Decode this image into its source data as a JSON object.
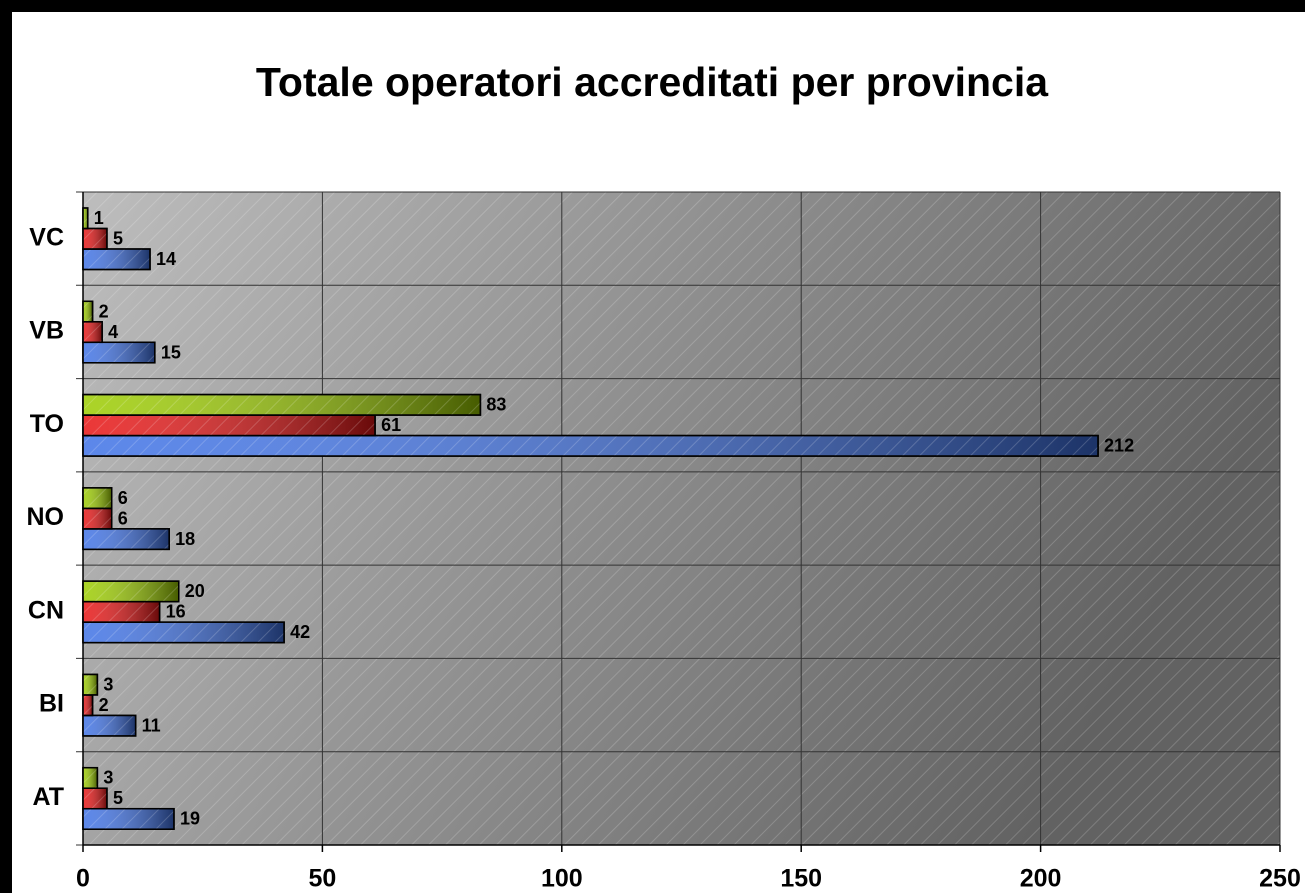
{
  "chart_data": {
    "type": "hbar",
    "title": "Totale operatori accreditati per provincia",
    "categories": [
      "AT",
      "BI",
      "CN",
      "NO",
      "TO",
      "VB",
      "VC"
    ],
    "series": [
      {
        "color": "#3f72e6",
        "values": [
          19,
          11,
          42,
          18,
          212,
          15,
          14
        ]
      },
      {
        "color": "#e81414",
        "values": [
          5,
          2,
          16,
          6,
          61,
          4,
          5
        ]
      },
      {
        "color": "#9ccc00",
        "values": [
          3,
          3,
          20,
          6,
          83,
          2,
          1
        ]
      }
    ],
    "xlim": [
      0,
      250
    ],
    "xticks": [
      0,
      50,
      100,
      150,
      200,
      250
    ],
    "grid": true
  }
}
